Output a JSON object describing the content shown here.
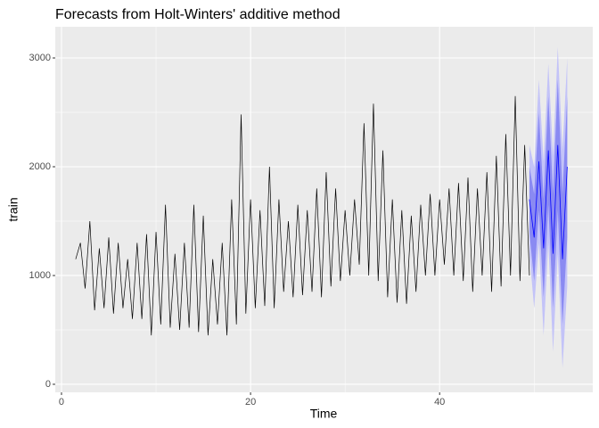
{
  "chart_data": {
    "type": "line",
    "title": "Forecasts from Holt-Winters' additive method",
    "x_label": "Time",
    "y_label": "train",
    "xlim": [
      -0.66,
      56.2
    ],
    "ylim": [
      -74,
      3287
    ],
    "xticks": [
      0,
      20,
      40
    ],
    "yticks": [
      0,
      1000,
      2000,
      3000
    ],
    "xminor": [
      10,
      30,
      50
    ],
    "yminor": [
      500,
      1500,
      2500
    ],
    "grid": true,
    "series": [
      {
        "color": "#000000",
        "x": [
          1.5,
          2,
          2.5,
          3,
          3.5,
          4,
          4.5,
          5,
          5.5,
          6,
          6.5,
          7,
          7.5,
          8,
          8.5,
          9,
          9.5,
          10,
          10.5,
          11,
          11.5,
          12,
          12.5,
          13,
          13.5,
          14,
          14.5,
          15,
          15.5,
          16,
          16.5,
          17,
          17.5,
          18,
          18.5,
          19,
          19.5,
          20,
          20.5,
          21,
          21.5,
          22,
          22.5,
          23,
          23.5,
          24,
          24.5,
          25,
          25.5,
          26,
          26.5,
          27,
          27.5,
          28,
          28.5,
          29,
          29.5,
          30,
          30.5,
          31,
          31.5,
          32,
          32.5,
          33,
          33.5,
          34,
          34.5,
          35,
          35.5,
          36,
          36.5,
          37,
          37.5,
          38,
          38.5,
          39,
          39.5,
          40,
          40.5,
          41,
          41.5,
          42,
          42.5,
          43,
          43.5,
          44,
          44.5,
          45,
          45.5,
          46,
          46.5,
          47,
          47.5,
          48,
          48.5,
          49,
          49.5
        ],
        "values": [
          1150,
          1300,
          880,
          1500,
          680,
          1250,
          700,
          1350,
          650,
          1300,
          700,
          1150,
          600,
          1300,
          600,
          1380,
          450,
          1400,
          550,
          1650,
          520,
          1200,
          500,
          1300,
          520,
          1650,
          480,
          1550,
          450,
          1150,
          550,
          1300,
          450,
          1700,
          550,
          2480,
          650,
          1700,
          700,
          1600,
          720,
          2000,
          700,
          1700,
          850,
          1500,
          800,
          1650,
          820,
          1600,
          850,
          1800,
          800,
          1950,
          900,
          1800,
          950,
          1600,
          1000,
          1700,
          1100,
          2400,
          1000,
          2580,
          950,
          2150,
          800,
          1700,
          750,
          1600,
          740,
          1550,
          850,
          1650,
          1000,
          1750,
          1000,
          1700,
          1100,
          1800,
          1000,
          1850,
          950,
          1900,
          850,
          1800,
          1000,
          1950,
          850,
          2100,
          900,
          2300,
          1000,
          2650,
          950,
          2200,
          1000
        ]
      }
    ],
    "forecast": {
      "mean_color": "#0000FF",
      "band80_color": "#8A8AF2",
      "band95_color": "#C3C3F8",
      "x": [
        49.5,
        50,
        50.5,
        51,
        51.5,
        52,
        52.5,
        53,
        53.5
      ],
      "mean": [
        1700,
        1350,
        2050,
        1250,
        2150,
        1200,
        2200,
        1150,
        2000
      ],
      "lo80": [
        1400,
        950,
        1600,
        800,
        1650,
        700,
        1600,
        550,
        1350
      ],
      "hi80": [
        2000,
        1750,
        2500,
        1700,
        2650,
        1750,
        2800,
        1750,
        2650
      ],
      "lo95": [
        1200,
        700,
        1300,
        450,
        1300,
        300,
        1200,
        150,
        900
      ],
      "hi95": [
        2200,
        2000,
        2800,
        2050,
        2950,
        2100,
        3100,
        2150,
        3000
      ]
    }
  }
}
